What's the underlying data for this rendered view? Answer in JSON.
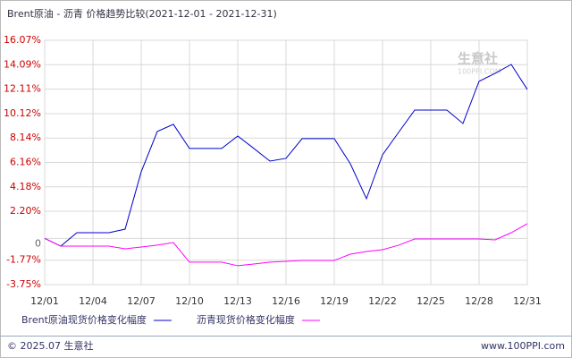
{
  "chart_data": {
    "type": "line",
    "title": "Brent原油 - 沥青 价格趋势比较(2021-12-01 - 2021-12-31)",
    "watermark": "生意社",
    "watermark_sub": "100PPI.COM",
    "categories": [
      "12/01",
      null,
      null,
      "12/04",
      null,
      null,
      "12/07",
      null,
      null,
      "12/10",
      null,
      null,
      "12/13",
      null,
      null,
      "12/16",
      null,
      null,
      "12/19",
      null,
      null,
      "12/22",
      null,
      null,
      "12/25",
      null,
      null,
      "12/28",
      null,
      null,
      "12/31"
    ],
    "series": [
      {
        "name": "Brent原油现货价格变化幅度",
        "color": "#0000cc",
        "values": [
          0,
          -0.63,
          0.46,
          0.46,
          0.46,
          0.75,
          5.4,
          8.67,
          9.25,
          7.29,
          7.29,
          7.29,
          8.3,
          7.3,
          6.27,
          6.49,
          8.09,
          8.09,
          8.09,
          6.05,
          3.22,
          6.78,
          8.6,
          10.41,
          10.41,
          10.41,
          9.32,
          12.74,
          13.39,
          14.11,
          12.08
        ]
      },
      {
        "name": "沥青现货价格变化幅度",
        "color": "#ff00ff",
        "values": [
          0,
          -0.63,
          -0.63,
          -0.63,
          -0.63,
          -0.85,
          -0.7,
          -0.55,
          -0.34,
          -1.93,
          -1.93,
          -1.93,
          -2.22,
          -2.08,
          -1.93,
          -1.86,
          -1.79,
          -1.79,
          -1.79,
          -1.28,
          -1.06,
          -0.92,
          -0.55,
          -0.05,
          -0.05,
          -0.05,
          -0.05,
          -0.05,
          -0.12,
          0.46,
          1.19
        ]
      }
    ],
    "ylim": [
      -3.75,
      16.07
    ],
    "yticks": [
      {
        "value": 16.07,
        "label": "16.07%"
      },
      {
        "value": 14.09,
        "label": "14.09%"
      },
      {
        "value": 12.11,
        "label": "12.11%"
      },
      {
        "value": 10.12,
        "label": "10.12%"
      },
      {
        "value": 8.14,
        "label": "8.14%"
      },
      {
        "value": 6.16,
        "label": "6.16%"
      },
      {
        "value": 4.18,
        "label": "4.18%"
      },
      {
        "value": 2.2,
        "label": "2.20%"
      },
      0,
      {
        "value": -1.77,
        "label": "-1.77%"
      },
      {
        "value": -3.75,
        "label": "-3.75%"
      }
    ],
    "grid": true,
    "footer_left": "© 2025.07 生意社",
    "footer_right": "www.100PPI.com"
  }
}
